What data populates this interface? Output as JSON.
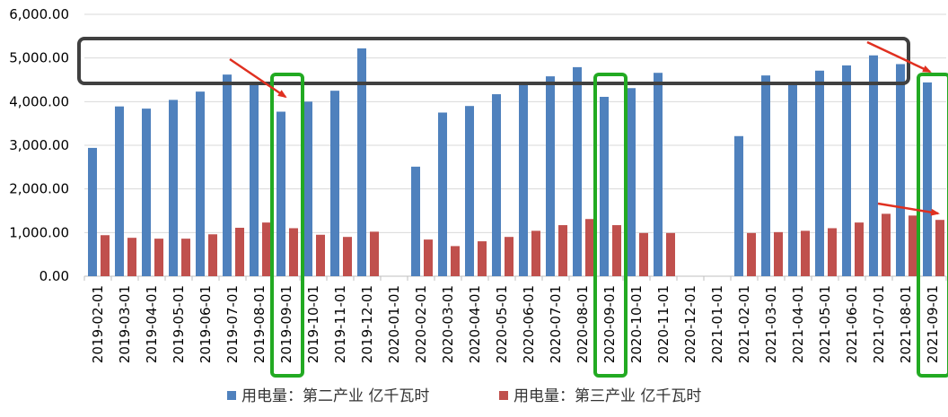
{
  "chart_data": {
    "type": "bar",
    "categories": [
      "2019-02-01",
      "2019-03-01",
      "2019-04-01",
      "2019-05-01",
      "2019-06-01",
      "2019-07-01",
      "2019-08-01",
      "2019-09-01",
      "2019-10-01",
      "2019-11-01",
      "2019-12-01",
      "2020-01-01",
      "2020-02-01",
      "2020-03-01",
      "2020-04-01",
      "2020-05-01",
      "2020-06-01",
      "2020-07-01",
      "2020-08-01",
      "2020-09-01",
      "2020-10-01",
      "2020-11-01",
      "2020-12-01",
      "2021-01-01",
      "2021-02-01",
      "2021-03-01",
      "2021-04-01",
      "2021-05-01",
      "2021-06-01",
      "2021-07-01",
      "2021-08-01",
      "2021-09-01"
    ],
    "series": [
      {
        "name": "用电量：第二产业 亿千瓦时",
        "color": "#4F81BD",
        "values": [
          2940,
          3890,
          3840,
          4040,
          4230,
          4620,
          4440,
          3770,
          4000,
          4250,
          5220,
          null,
          2510,
          3750,
          3900,
          4170,
          4430,
          4580,
          4790,
          4110,
          4310,
          4660,
          null,
          null,
          3210,
          4600,
          4430,
          4710,
          4830,
          5060,
          4860,
          4440
        ]
      },
      {
        "name": "用电量：第三产业 亿千瓦时",
        "color": "#C0504D",
        "values": [
          940,
          880,
          860,
          860,
          960,
          1110,
          1230,
          1100,
          950,
          900,
          1020,
          null,
          840,
          690,
          800,
          900,
          1040,
          1170,
          1310,
          1170,
          990,
          990,
          null,
          null,
          990,
          1010,
          1040,
          1100,
          1230,
          1430,
          1390,
          1290
        ]
      }
    ],
    "ylim": [
      0,
      6000
    ],
    "yticks": [
      "0.00",
      "1,000.00",
      "2,000.00",
      "3,000.00",
      "4,000.00",
      "5,000.00",
      "6,000.00"
    ],
    "ytick_values": [
      0,
      1000,
      2000,
      3000,
      4000,
      5000,
      6000
    ],
    "grid": true,
    "legend_position": "bottom",
    "annotations": {
      "highlight_box_color": "#404040",
      "green_box_color": "#22AA22",
      "green_box_categories": [
        "2019-09-01",
        "2020-09-01",
        "2021-09-01"
      ],
      "arrow_color": "#E03020"
    }
  }
}
